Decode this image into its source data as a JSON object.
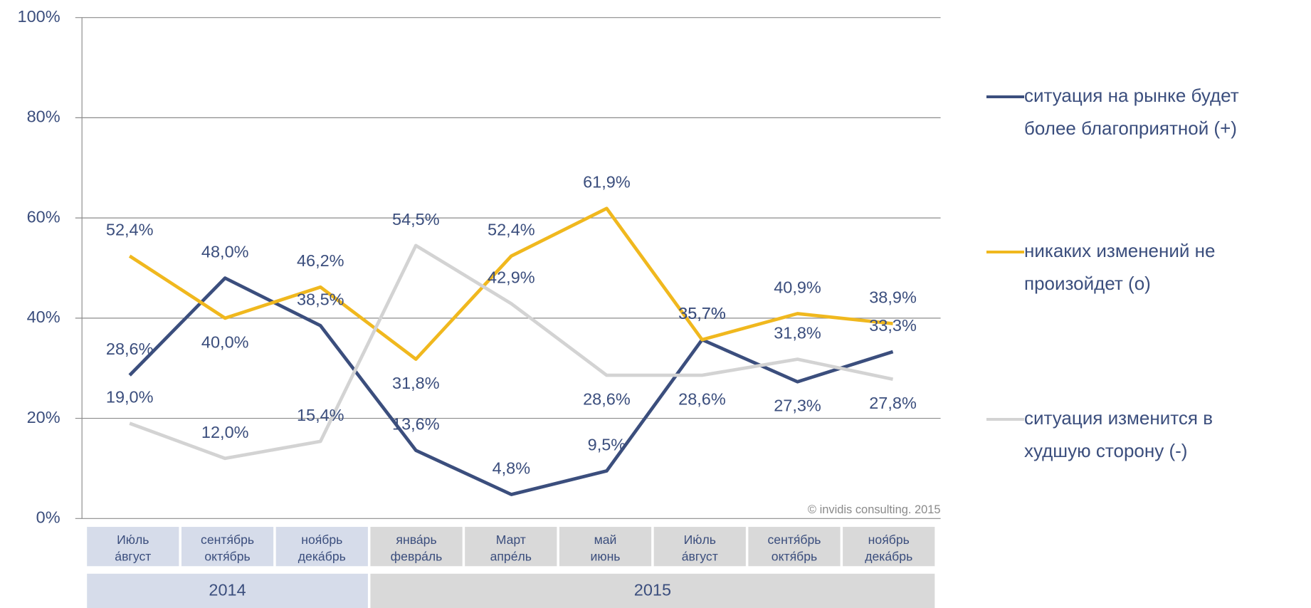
{
  "chart_data": {
    "type": "line",
    "categories": [
      "Ию́ль\nа́вгуст",
      "сентя́брь\nоктя́брь",
      "ноя́брь\nдека́брь",
      "янва́рь\nфевра́ль",
      "Март\nапре́ль",
      "май\nиюнь",
      "Ию́ль\nа́вгуст",
      "сентя́брь\nоктя́брь",
      "ноя́брь\nдека́брь"
    ],
    "groups": [
      {
        "label": "2014",
        "span": 3,
        "color": "#d6dcea"
      },
      {
        "label": "2015",
        "span": 6,
        "color": "#d9d9d9"
      }
    ],
    "series": [
      {
        "name": "ситуация на рынке будет более благоприятной (+)",
        "color": "#3b4e7d",
        "values": [
          28.6,
          48.0,
          38.5,
          13.6,
          4.8,
          9.5,
          35.7,
          27.3,
          33.3
        ],
        "value_labels": [
          "28,6%",
          "48,0%",
          "38,5%",
          "13,6%",
          "4,8%",
          "9,5%",
          "35,7%",
          "27,3%",
          "33,3%"
        ]
      },
      {
        "name": "никаких изменений не произойдет (o)",
        "color": "#f0b81e",
        "values": [
          52.4,
          40.0,
          46.2,
          31.8,
          52.4,
          61.9,
          35.7,
          40.9,
          38.9
        ],
        "value_labels": [
          "52,4%",
          "40,0%",
          "46,2%",
          "31,8%",
          "52,4%",
          "61,9%",
          "35,7%",
          "40,9%",
          "38,9%"
        ]
      },
      {
        "name": "ситуация изменится в худшую сторону (-)",
        "color": "#d3d3d3",
        "values": [
          19.0,
          12.0,
          15.4,
          54.5,
          42.9,
          28.6,
          28.6,
          31.8,
          27.8
        ],
        "value_labels": [
          "19,0%",
          "12,0%",
          "15,4%",
          "54,5%",
          "42,9%",
          "28,6%",
          "28,6%",
          "31,8%",
          "27,8%"
        ]
      }
    ],
    "ylim": [
      0,
      100
    ],
    "yticks": [
      {
        "value": 0,
        "label": "0%"
      },
      {
        "value": 20,
        "label": "20%"
      },
      {
        "value": 40,
        "label": "40%"
      },
      {
        "value": 60,
        "label": "60%"
      },
      {
        "value": 80,
        "label": "80%"
      },
      {
        "value": 100,
        "label": "100%"
      }
    ],
    "grid": true,
    "annotation": "© invidis consulting. 2015"
  }
}
